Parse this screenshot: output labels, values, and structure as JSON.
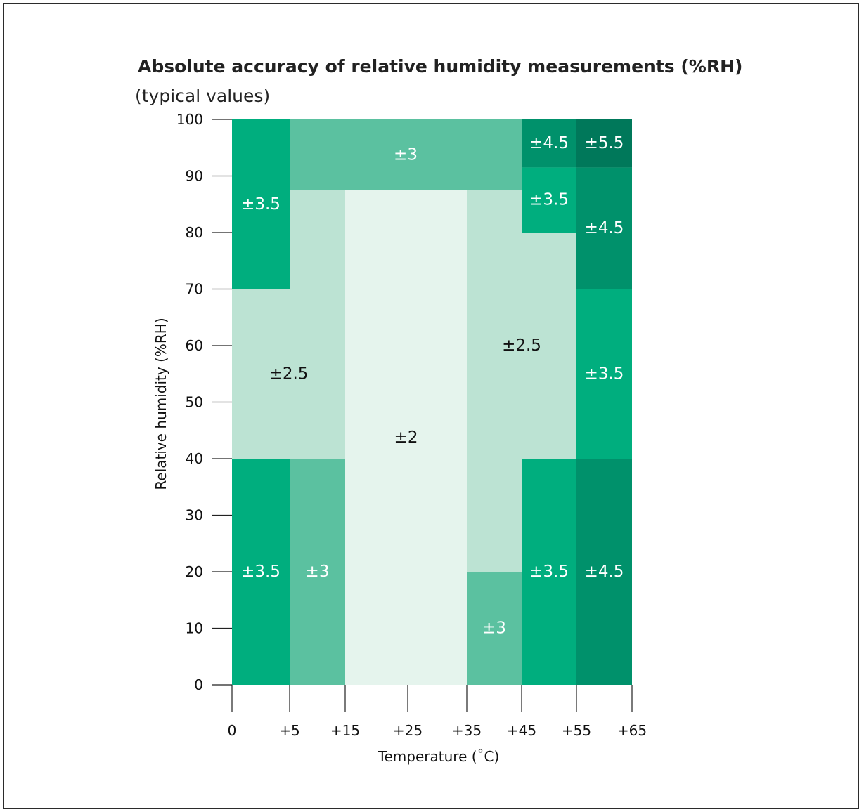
{
  "chart_data": {
    "type": "heatmap",
    "title": "Absolute accuracy of relative humidity measurements (%RH)",
    "subtitle": "(typical values)",
    "xlabel": "Temperature (˚C)",
    "ylabel": "Relative humidity (%RH)",
    "x_ticks": [
      "0",
      "+5",
      "+15",
      "+25",
      "+35",
      "+45",
      "+55",
      "+65"
    ],
    "y_ticks": [
      "0",
      "10",
      "20",
      "30",
      "40",
      "50",
      "60",
      "70",
      "80",
      "90",
      "100"
    ],
    "ylim": [
      0,
      100
    ],
    "x_bands": [
      "0 to +5",
      "+5 to +15",
      "+15 to +35",
      "+35 to +45",
      "+45 to +55",
      "+55 to +65"
    ],
    "colors": {
      "2": "#e5f4ed",
      "2.5": "#bce3d3",
      "3": "#5bc1a0",
      "3.5": "#00ae7e",
      "4.5": "#00916b",
      "5.5": "#00785a"
    },
    "regions": [
      {
        "x_band": [
          0,
          1
        ],
        "y": [
          0,
          40
        ],
        "accuracy": 3.5,
        "label": "±3.5"
      },
      {
        "x_band": [
          0,
          1
        ],
        "y": [
          70,
          100
        ],
        "accuracy": 3.5,
        "label": "±3.5"
      },
      {
        "x_band": [
          0,
          2
        ],
        "y": [
          40,
          70
        ],
        "accuracy": 2.5,
        "label": "±2.5"
      },
      {
        "x_band": [
          1,
          2
        ],
        "y": [
          0,
          40
        ],
        "accuracy": 3,
        "label": "±3"
      },
      {
        "x_band": [
          1,
          2
        ],
        "y": [
          70,
          87.5
        ],
        "accuracy": 2.5,
        "label": ""
      },
      {
        "x_band": [
          1,
          4
        ],
        "y": [
          87.5,
          100
        ],
        "accuracy": 3,
        "label": "±3"
      },
      {
        "x_band": [
          2,
          3
        ],
        "y": [
          0,
          87.5
        ],
        "accuracy": 2,
        "label": "±2"
      },
      {
        "x_band": [
          3,
          4
        ],
        "y": [
          0,
          20
        ],
        "accuracy": 3,
        "label": "±3"
      },
      {
        "x_band": [
          3,
          5
        ],
        "y": [
          40,
          80
        ],
        "accuracy": 2.5,
        "label": "±2.5"
      },
      {
        "x_band": [
          3,
          4
        ],
        "y": [
          20,
          40
        ],
        "accuracy": 2.5,
        "label": ""
      },
      {
        "x_band": [
          3,
          4
        ],
        "y": [
          80,
          87.5
        ],
        "accuracy": 2.5,
        "label": ""
      },
      {
        "x_band": [
          4,
          5
        ],
        "y": [
          0,
          40
        ],
        "accuracy": 3.5,
        "label": "±3.5"
      },
      {
        "x_band": [
          4,
          5
        ],
        "y": [
          80,
          91.5
        ],
        "accuracy": 3.5,
        "label": "±3.5"
      },
      {
        "x_band": [
          4,
          5
        ],
        "y": [
          91.5,
          100
        ],
        "accuracy": 4.5,
        "label": "±4.5"
      },
      {
        "x_band": [
          5,
          6
        ],
        "y": [
          0,
          40
        ],
        "accuracy": 4.5,
        "label": "±4.5"
      },
      {
        "x_band": [
          5,
          6
        ],
        "y": [
          40,
          70
        ],
        "accuracy": 3.5,
        "label": "±3.5"
      },
      {
        "x_band": [
          5,
          6
        ],
        "y": [
          70,
          91.5
        ],
        "accuracy": 4.5,
        "label": "±4.5"
      },
      {
        "x_band": [
          5,
          6
        ],
        "y": [
          91.5,
          100
        ],
        "accuracy": 5.5,
        "label": "±5.5"
      }
    ],
    "legend": "none",
    "grid": false
  }
}
